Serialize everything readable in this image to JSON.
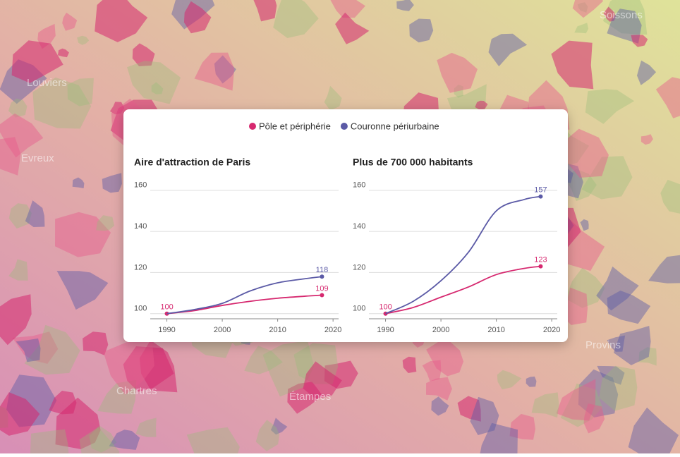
{
  "map_labels": [
    "Soissons",
    "Louviers",
    "Evreux",
    "Étampes",
    "Provins",
    "Chartres"
  ],
  "chart_data": [
    {
      "type": "line",
      "title": "Aire d'attraction de Paris",
      "x": [
        1990,
        1995,
        2000,
        2005,
        2010,
        2015,
        2018
      ],
      "series": [
        {
          "name": "Pôle et périphérie",
          "color": "#d6286f",
          "values": [
            100,
            101.5,
            104,
            106,
            107.5,
            108.5,
            109
          ]
        },
        {
          "name": "Couronne périurbaine",
          "color": "#5b5aa6",
          "values": [
            100,
            102,
            105,
            111,
            115,
            117,
            118
          ]
        }
      ],
      "xlim": [
        1987,
        2021
      ],
      "xticks": [
        1990,
        2000,
        2010,
        2020
      ],
      "ylim": [
        97.5,
        162
      ],
      "yticks": [
        100,
        120,
        140,
        160
      ],
      "grid": true,
      "legend": "top"
    },
    {
      "type": "line",
      "title": "Plus de 700 000 habitants",
      "x": [
        1990,
        1995,
        2000,
        2005,
        2010,
        2015,
        2018
      ],
      "series": [
        {
          "name": "Pôle et périphérie",
          "color": "#d6286f",
          "values": [
            100,
            103,
            108,
            113,
            119,
            122,
            123
          ]
        },
        {
          "name": "Couronne périurbaine",
          "color": "#5b5aa6",
          "values": [
            100,
            106,
            116,
            130,
            150,
            155.5,
            157
          ]
        }
      ],
      "xlim": [
        1987,
        2021
      ],
      "xticks": [
        1990,
        2000,
        2010,
        2020
      ],
      "ylim": [
        97.5,
        162
      ],
      "yticks": [
        100,
        120,
        140,
        160
      ],
      "grid": true
    }
  ]
}
